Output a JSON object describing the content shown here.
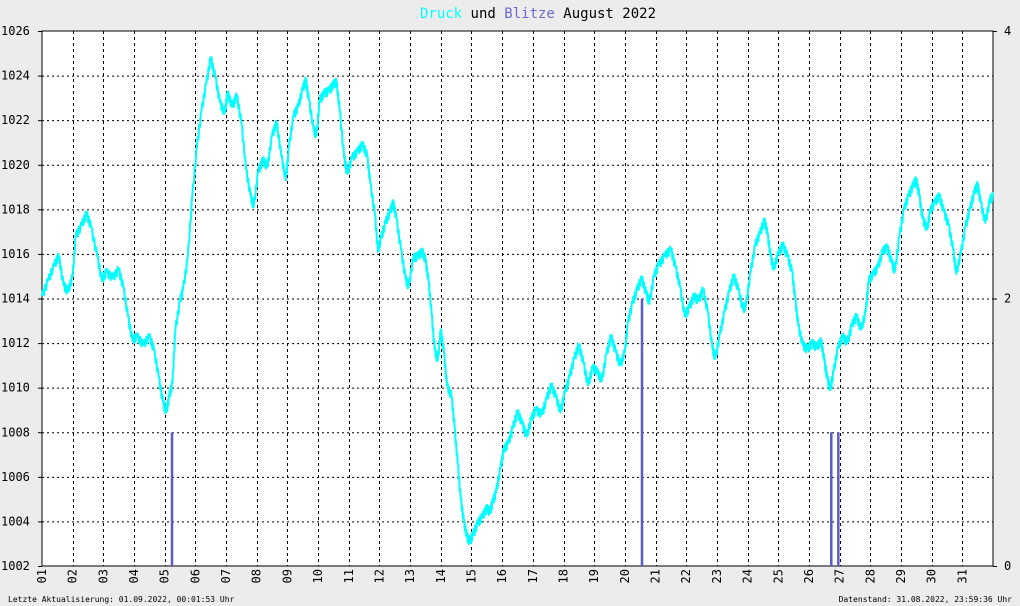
{
  "chart_data": {
    "type": "line",
    "title": {
      "part1": "Druck",
      "part2": " und ",
      "part3": "Blitze",
      "part4": " August 2022"
    },
    "x": {
      "tick_labels": [
        "01",
        "02",
        "03",
        "04",
        "05",
        "06",
        "07",
        "08",
        "09",
        "10",
        "11",
        "12",
        "13",
        "14",
        "15",
        "16",
        "17",
        "18",
        "19",
        "20",
        "21",
        "22",
        "23",
        "24",
        "25",
        "26",
        "27",
        "28",
        "29",
        "30",
        "31"
      ],
      "range": [
        1,
        32
      ]
    },
    "y_left": {
      "ticks": [
        1002,
        1004,
        1006,
        1008,
        1010,
        1012,
        1014,
        1016,
        1018,
        1020,
        1022,
        1024,
        1026
      ],
      "range": [
        1002,
        1026
      ]
    },
    "y_right": {
      "ticks": [
        0,
        2,
        4
      ],
      "range": [
        0,
        4
      ]
    },
    "grid": true,
    "series": [
      {
        "name": "Druck",
        "color": "#00ffff",
        "axis": "left",
        "points": [
          [
            1.0,
            1014.1
          ],
          [
            1.2,
            1014.8
          ],
          [
            1.4,
            1015.5
          ],
          [
            1.55,
            1015.9
          ],
          [
            1.7,
            1014.6
          ],
          [
            1.85,
            1014.3
          ],
          [
            2.0,
            1015.0
          ],
          [
            2.1,
            1016.8
          ],
          [
            2.3,
            1017.3
          ],
          [
            2.45,
            1017.8
          ],
          [
            2.6,
            1017.2
          ],
          [
            2.8,
            1015.9
          ],
          [
            2.95,
            1014.8
          ],
          [
            3.1,
            1015.2
          ],
          [
            3.3,
            1014.9
          ],
          [
            3.5,
            1015.3
          ],
          [
            3.65,
            1014.5
          ],
          [
            3.8,
            1013.2
          ],
          [
            3.95,
            1012.1
          ],
          [
            4.1,
            1012.3
          ],
          [
            4.3,
            1011.9
          ],
          [
            4.5,
            1012.3
          ],
          [
            4.65,
            1011.7
          ],
          [
            4.8,
            1010.5
          ],
          [
            4.95,
            1009.3
          ],
          [
            5.05,
            1008.9
          ],
          [
            5.15,
            1009.6
          ],
          [
            5.25,
            1010.2
          ],
          [
            5.35,
            1012.6
          ],
          [
            5.5,
            1013.9
          ],
          [
            5.6,
            1014.4
          ],
          [
            5.75,
            1015.8
          ],
          [
            5.9,
            1018.6
          ],
          [
            6.05,
            1020.8
          ],
          [
            6.2,
            1022.4
          ],
          [
            6.35,
            1023.6
          ],
          [
            6.5,
            1024.8
          ],
          [
            6.65,
            1023.9
          ],
          [
            6.8,
            1022.8
          ],
          [
            6.95,
            1022.3
          ],
          [
            7.05,
            1023.2
          ],
          [
            7.2,
            1022.6
          ],
          [
            7.35,
            1023.1
          ],
          [
            7.5,
            1021.9
          ],
          [
            7.65,
            1019.8
          ],
          [
            7.8,
            1018.6
          ],
          [
            7.9,
            1018.1
          ],
          [
            8.05,
            1019.7
          ],
          [
            8.2,
            1020.2
          ],
          [
            8.35,
            1019.9
          ],
          [
            8.5,
            1021.3
          ],
          [
            8.65,
            1021.9
          ],
          [
            8.8,
            1020.4
          ],
          [
            8.95,
            1019.3
          ],
          [
            9.05,
            1020.8
          ],
          [
            9.2,
            1022.2
          ],
          [
            9.35,
            1022.6
          ],
          [
            9.5,
            1023.4
          ],
          [
            9.6,
            1023.8
          ],
          [
            9.7,
            1022.9
          ],
          [
            9.85,
            1021.6
          ],
          [
            9.95,
            1021.3
          ],
          [
            10.05,
            1022.9
          ],
          [
            10.2,
            1023.2
          ],
          [
            10.35,
            1023.3
          ],
          [
            10.5,
            1023.6
          ],
          [
            10.6,
            1023.7
          ],
          [
            10.7,
            1022.5
          ],
          [
            10.85,
            1020.3
          ],
          [
            10.95,
            1019.6
          ],
          [
            11.1,
            1020.3
          ],
          [
            11.3,
            1020.6
          ],
          [
            11.45,
            1020.9
          ],
          [
            11.6,
            1020.4
          ],
          [
            11.7,
            1019.2
          ],
          [
            11.85,
            1017.8
          ],
          [
            11.95,
            1016.1
          ],
          [
            12.05,
            1016.7
          ],
          [
            12.2,
            1017.4
          ],
          [
            12.35,
            1017.9
          ],
          [
            12.45,
            1018.3
          ],
          [
            12.55,
            1017.6
          ],
          [
            12.7,
            1016.2
          ],
          [
            12.85,
            1014.9
          ],
          [
            12.95,
            1014.5
          ],
          [
            13.1,
            1015.8
          ],
          [
            13.25,
            1015.9
          ],
          [
            13.4,
            1016.1
          ],
          [
            13.5,
            1015.7
          ],
          [
            13.6,
            1014.8
          ],
          [
            13.7,
            1013.3
          ],
          [
            13.8,
            1011.7
          ],
          [
            13.9,
            1011.2
          ],
          [
            14.0,
            1012.6
          ],
          [
            14.1,
            1011.6
          ],
          [
            14.2,
            1010.1
          ],
          [
            14.35,
            1009.6
          ],
          [
            14.45,
            1008.2
          ],
          [
            14.55,
            1006.6
          ],
          [
            14.65,
            1005.0
          ],
          [
            14.75,
            1004.0
          ],
          [
            14.85,
            1003.3
          ],
          [
            14.95,
            1003.1
          ],
          [
            15.05,
            1003.4
          ],
          [
            15.2,
            1003.9
          ],
          [
            15.35,
            1004.2
          ],
          [
            15.5,
            1004.6
          ],
          [
            15.6,
            1004.4
          ],
          [
            15.7,
            1004.9
          ],
          [
            15.8,
            1005.3
          ],
          [
            15.95,
            1006.4
          ],
          [
            16.05,
            1007.2
          ],
          [
            16.2,
            1007.5
          ],
          [
            16.35,
            1008.2
          ],
          [
            16.5,
            1008.9
          ],
          [
            16.65,
            1008.4
          ],
          [
            16.8,
            1007.8
          ],
          [
            16.95,
            1008.6
          ],
          [
            17.1,
            1009.0
          ],
          [
            17.3,
            1008.8
          ],
          [
            17.45,
            1009.5
          ],
          [
            17.6,
            1010.1
          ],
          [
            17.75,
            1009.6
          ],
          [
            17.9,
            1008.9
          ],
          [
            18.05,
            1009.8
          ],
          [
            18.2,
            1010.5
          ],
          [
            18.35,
            1011.3
          ],
          [
            18.5,
            1011.9
          ],
          [
            18.65,
            1011.1
          ],
          [
            18.8,
            1010.1
          ],
          [
            18.95,
            1010.9
          ],
          [
            19.1,
            1010.7
          ],
          [
            19.25,
            1010.3
          ],
          [
            19.4,
            1011.5
          ],
          [
            19.55,
            1012.3
          ],
          [
            19.7,
            1011.6
          ],
          [
            19.85,
            1011.0
          ],
          [
            20.0,
            1011.6
          ],
          [
            20.1,
            1012.9
          ],
          [
            20.25,
            1013.8
          ],
          [
            20.4,
            1014.4
          ],
          [
            20.55,
            1014.9
          ],
          [
            20.7,
            1014.2
          ],
          [
            20.8,
            1013.8
          ],
          [
            20.95,
            1015.0
          ],
          [
            21.1,
            1015.5
          ],
          [
            21.3,
            1015.9
          ],
          [
            21.5,
            1016.2
          ],
          [
            21.65,
            1015.4
          ],
          [
            21.8,
            1014.5
          ],
          [
            21.95,
            1013.2
          ],
          [
            22.1,
            1013.6
          ],
          [
            22.25,
            1014.1
          ],
          [
            22.4,
            1013.9
          ],
          [
            22.55,
            1014.4
          ],
          [
            22.7,
            1013.4
          ],
          [
            22.85,
            1011.8
          ],
          [
            22.95,
            1011.3
          ],
          [
            23.1,
            1012.4
          ],
          [
            23.25,
            1013.4
          ],
          [
            23.4,
            1014.3
          ],
          [
            23.55,
            1015.0
          ],
          [
            23.7,
            1014.4
          ],
          [
            23.85,
            1013.5
          ],
          [
            23.95,
            1013.7
          ],
          [
            24.1,
            1015.2
          ],
          [
            24.25,
            1016.4
          ],
          [
            24.4,
            1016.9
          ],
          [
            24.55,
            1017.5
          ],
          [
            24.65,
            1016.9
          ],
          [
            24.75,
            1015.9
          ],
          [
            24.85,
            1015.3
          ],
          [
            25.0,
            1016.0
          ],
          [
            25.15,
            1016.4
          ],
          [
            25.3,
            1015.9
          ],
          [
            25.45,
            1015.2
          ],
          [
            25.55,
            1014.0
          ],
          [
            25.65,
            1012.8
          ],
          [
            25.8,
            1011.9
          ],
          [
            25.95,
            1011.7
          ],
          [
            26.1,
            1012.0
          ],
          [
            26.25,
            1011.8
          ],
          [
            26.4,
            1012.1
          ],
          [
            26.5,
            1011.2
          ],
          [
            26.6,
            1010.4
          ],
          [
            26.7,
            1009.9
          ],
          [
            26.8,
            1010.7
          ],
          [
            26.95,
            1011.8
          ],
          [
            27.1,
            1012.3
          ],
          [
            27.25,
            1012.0
          ],
          [
            27.4,
            1012.8
          ],
          [
            27.55,
            1013.2
          ],
          [
            27.7,
            1012.6
          ],
          [
            27.85,
            1013.4
          ],
          [
            27.95,
            1014.8
          ],
          [
            28.1,
            1015.1
          ],
          [
            28.25,
            1015.4
          ],
          [
            28.4,
            1016.1
          ],
          [
            28.55,
            1016.3
          ],
          [
            28.7,
            1015.6
          ],
          [
            28.8,
            1015.2
          ],
          [
            28.95,
            1016.8
          ],
          [
            29.1,
            1018.0
          ],
          [
            29.25,
            1018.6
          ],
          [
            29.4,
            1019.1
          ],
          [
            29.5,
            1019.3
          ],
          [
            29.6,
            1018.6
          ],
          [
            29.7,
            1017.6
          ],
          [
            29.85,
            1017.1
          ],
          [
            29.95,
            1017.9
          ],
          [
            30.1,
            1018.3
          ],
          [
            30.25,
            1018.6
          ],
          [
            30.4,
            1017.9
          ],
          [
            30.55,
            1017.3
          ],
          [
            30.7,
            1016.2
          ],
          [
            30.8,
            1015.1
          ],
          [
            30.95,
            1016.0
          ],
          [
            31.1,
            1017.2
          ],
          [
            31.25,
            1018.0
          ],
          [
            31.4,
            1018.8
          ],
          [
            31.5,
            1019.1
          ],
          [
            31.6,
            1018.3
          ],
          [
            31.75,
            1017.4
          ],
          [
            31.9,
            1018.4
          ],
          [
            32.0,
            1018.6
          ]
        ]
      },
      {
        "name": "Blitze",
        "color": "#5b5bc6",
        "axis": "right",
        "type": "bar",
        "bars": [
          {
            "x": 5.23,
            "value": 1
          },
          {
            "x": 20.55,
            "value": 2
          },
          {
            "x": 26.72,
            "value": 1
          },
          {
            "x": 26.95,
            "value": 1
          }
        ]
      }
    ]
  },
  "footer": {
    "left": "Letzte Aktualisierung: 01.09.2022, 00:01:53 Uhr",
    "right": "Datenstand: 31.08.2022, 23:59:36 Uhr"
  }
}
